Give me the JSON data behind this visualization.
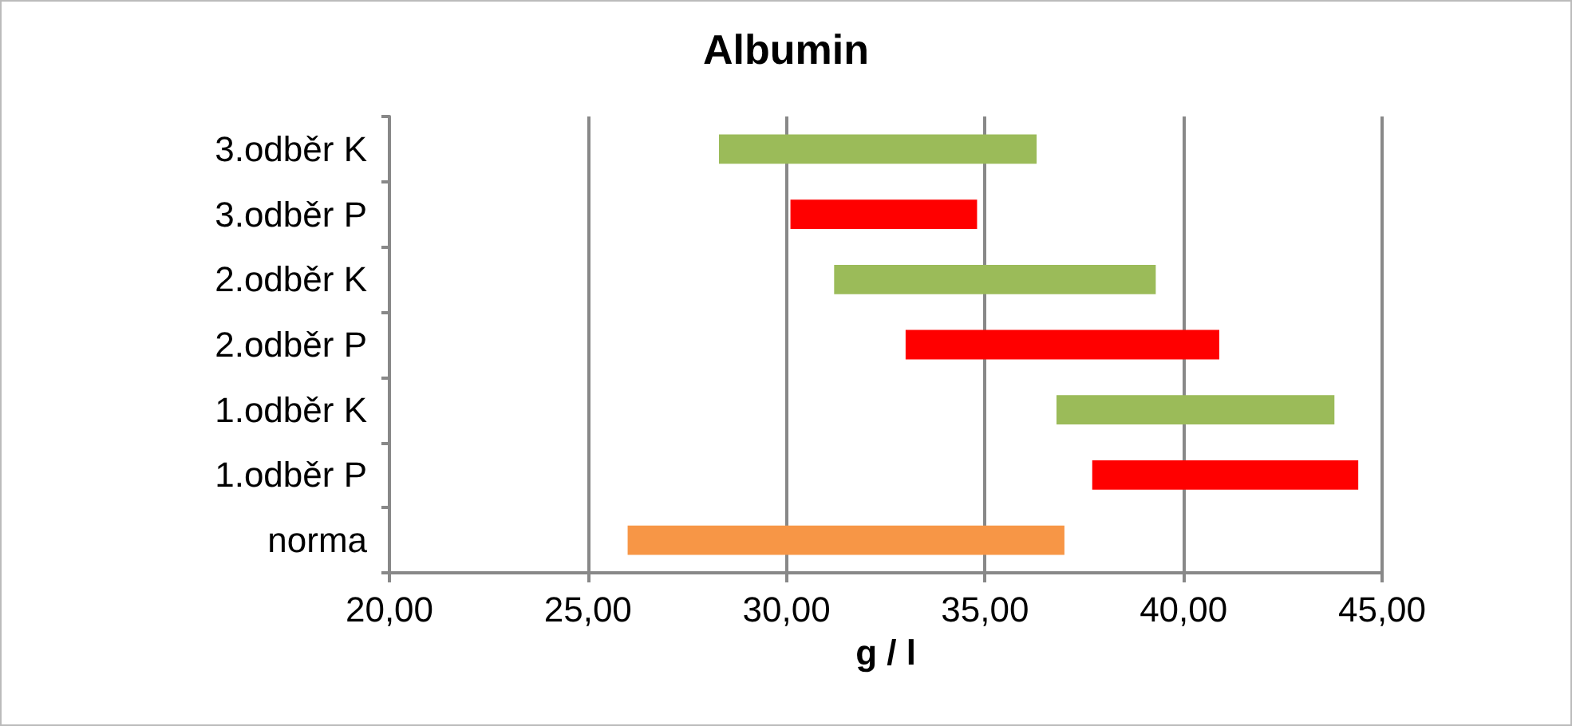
{
  "chart_data": {
    "type": "bar",
    "orientation": "horizontal",
    "title": "Albumin",
    "xlabel": "g / l",
    "categories": [
      "3.odběr K",
      "3.odběr P",
      "2.odběr K",
      "2.odběr P",
      "1.odběr K",
      "1.odběr P",
      "norma"
    ],
    "base": [
      28.3,
      30.1,
      31.2,
      33.0,
      36.8,
      37.7,
      26.0
    ],
    "values": [
      8.0,
      4.7,
      8.1,
      7.9,
      7.0,
      6.7,
      11.0
    ],
    "colors": [
      "#9bbb59",
      "#ff0000",
      "#9bbb59",
      "#ff0000",
      "#9bbb59",
      "#ff0000",
      "#f79646"
    ],
    "xlim": [
      20,
      45
    ],
    "xticks": [
      {
        "value": 20,
        "label": "20,00"
      },
      {
        "value": 25,
        "label": "25,00"
      },
      {
        "value": 30,
        "label": "30,00"
      },
      {
        "value": 35,
        "label": "35,00"
      },
      {
        "value": 40,
        "label": "40,00"
      },
      {
        "value": 45,
        "label": "45,00"
      }
    ],
    "grid": "x"
  }
}
